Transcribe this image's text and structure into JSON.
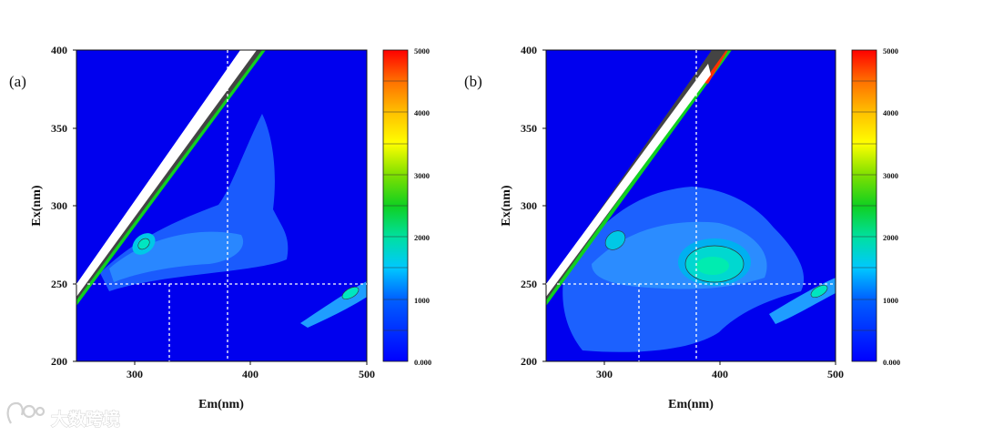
{
  "watermark": {
    "text": "大数跨境"
  },
  "chart_data": [
    {
      "type": "heatmap",
      "panel_label": "(a)",
      "xlabel": "Em(nm)",
      "ylabel": "Ex(nm)",
      "xlim": [
        250,
        500
      ],
      "ylim": [
        200,
        400
      ],
      "xticks": [
        "300",
        "400",
        "500"
      ],
      "yticks": [
        "200",
        "250",
        "300",
        "350",
        "400"
      ],
      "colorbar": {
        "min": 0,
        "max": 5000,
        "ticks": [
          "0.000",
          "1000",
          "2000",
          "3000",
          "4000",
          "5000"
        ]
      },
      "reference_lines": {
        "x": [
          330,
          380
        ],
        "y": [
          250
        ]
      },
      "peaks": [
        {
          "em": 308,
          "ex": 273,
          "intensity": 1500
        },
        {
          "em": 355,
          "ex": 270,
          "intensity": 700
        },
        {
          "em": 390,
          "ex": 320,
          "intensity": 450
        },
        {
          "em": 490,
          "ex": 245,
          "intensity": 1600
        }
      ]
    },
    {
      "type": "heatmap",
      "panel_label": "(b)",
      "xlabel": "Em(nm)",
      "ylabel": "Ex(nm)",
      "xlim": [
        250,
        500
      ],
      "ylim": [
        200,
        400
      ],
      "xticks": [
        "300",
        "400",
        "500"
      ],
      "yticks": [
        "200",
        "250",
        "300",
        "350",
        "400"
      ],
      "colorbar": {
        "min": 0,
        "max": 5000,
        "ticks": [
          "0.000",
          "1000",
          "2000",
          "3000",
          "4000",
          "5000"
        ]
      },
      "reference_lines": {
        "x": [
          330,
          380
        ],
        "y": [
          250
        ]
      },
      "peaks": [
        {
          "em": 312,
          "ex": 278,
          "intensity": 1200
        },
        {
          "em": 390,
          "ex": 260,
          "intensity": 1700
        },
        {
          "em": 360,
          "ex": 230,
          "intensity": 600
        },
        {
          "em": 480,
          "ex": 240,
          "intensity": 1300
        }
      ]
    }
  ]
}
